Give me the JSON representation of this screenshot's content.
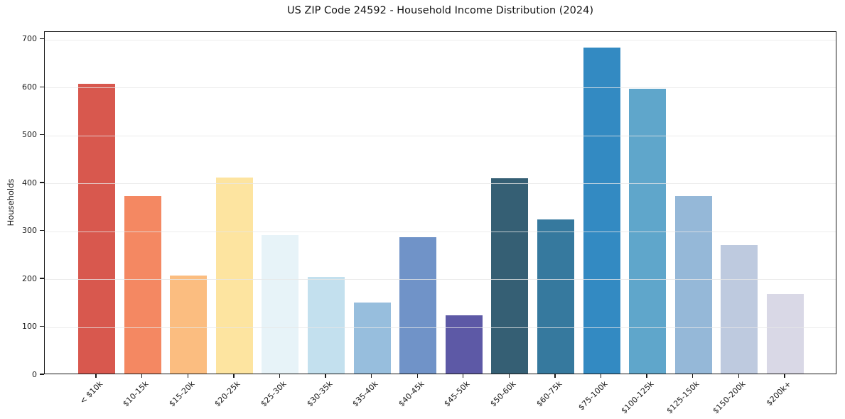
{
  "chart_data": {
    "type": "bar",
    "title": "US ZIP Code 24592 - Household Income Distribution (2024)",
    "xlabel": "",
    "ylabel": "Households",
    "categories": [
      "< $10k",
      "$10-15k",
      "$15-20k",
      "$20-25k",
      "$25-30k",
      "$30-35k",
      "$35-40k",
      "$40-45k",
      "$45-50k",
      "$50-60k",
      "$60-75k",
      "$75-100k",
      "$100-125k",
      "$125-150k",
      "$150-200k",
      "$200k+"
    ],
    "values": [
      605,
      371,
      204,
      409,
      289,
      201,
      148,
      284,
      122,
      408,
      321,
      681,
      595,
      370,
      269,
      166
    ],
    "bar_colors": [
      "#d8584e",
      "#f48862",
      "#fbbd80",
      "#fde4a0",
      "#e7f3f8",
      "#c3e0ee",
      "#97bedd",
      "#7093c8",
      "#5d59a6",
      "#355f74",
      "#36799e",
      "#338ac2",
      "#5fa6cb",
      "#95b8d8",
      "#becadf",
      "#d9d8e6"
    ],
    "yticks": [
      0,
      100,
      200,
      300,
      400,
      500,
      600,
      700
    ],
    "ylim": [
      0,
      716
    ],
    "grid": "horizontal-on-top",
    "legend": "none",
    "x_tick_rotation_deg": 45,
    "axis_color": "#1a1a1a",
    "grid_color": "#e7e7e7",
    "background": "#ffffff"
  }
}
